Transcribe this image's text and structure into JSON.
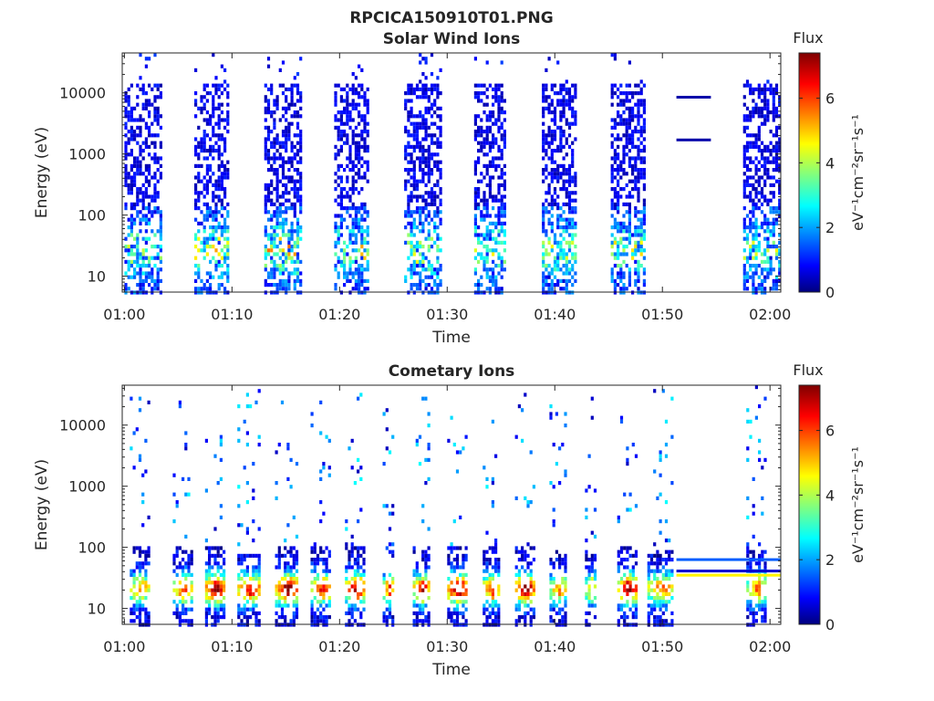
{
  "figure_title": "RPCICA150910T01.PNG",
  "chart_data": [
    {
      "type": "heatmap",
      "title": "Solar Wind Ions",
      "xlabel": "Time",
      "ylabel": "Energy (eV)",
      "x_ticks": [
        "01:00",
        "01:10",
        "01:20",
        "01:30",
        "01:40",
        "01:50",
        "02:00"
      ],
      "xlim_minutes": [
        -0.2,
        61.0
      ],
      "y_scale": "log",
      "y_ticks": [
        "10",
        "100",
        "1000",
        "10000"
      ],
      "ylim": [
        5.5,
        45000
      ],
      "colorbar": {
        "label": "Flux",
        "unit_label": "eV⁻¹cm⁻²sr⁻¹s⁻¹",
        "ticks": [
          "0",
          "2",
          "4",
          "6"
        ],
        "range": [
          0,
          7.4
        ]
      },
      "bursts": [
        {
          "start_min": 0.0,
          "end_min": 3.5,
          "peak_flux": 4.6,
          "emax": 15000
        },
        {
          "start_min": 6.5,
          "end_min": 9.8,
          "peak_flux": 5.4,
          "emax": 15000
        },
        {
          "start_min": 13.0,
          "end_min": 16.5,
          "peak_flux": 5.6,
          "emax": 15000
        },
        {
          "start_min": 19.5,
          "end_min": 22.7,
          "peak_flux": 4.8,
          "emax": 15000
        },
        {
          "start_min": 26.0,
          "end_min": 29.5,
          "peak_flux": 4.8,
          "emax": 15000
        },
        {
          "start_min": 32.5,
          "end_min": 35.5,
          "peak_flux": 4.3,
          "emax": 15000
        },
        {
          "start_min": 38.8,
          "end_min": 42.0,
          "peak_flux": 4.6,
          "emax": 15000
        },
        {
          "start_min": 45.2,
          "end_min": 48.5,
          "peak_flux": 5.0,
          "emax": 15000
        },
        {
          "start_min": 57.5,
          "end_min": 61.0,
          "peak_flux": 3.8,
          "emax": 15000
        }
      ],
      "lines": [
        {
          "start_min": 51.3,
          "end_min": 54.5,
          "energy": 8500,
          "flux": 0.3
        },
        {
          "start_min": 51.3,
          "end_min": 54.5,
          "energy": 1700,
          "flux": 0.3
        }
      ]
    },
    {
      "type": "heatmap",
      "title": "Cometary Ions",
      "xlabel": "Time",
      "ylabel": "Energy (eV)",
      "x_ticks": [
        "01:00",
        "01:10",
        "01:20",
        "01:30",
        "01:40",
        "01:50",
        "02:00"
      ],
      "xlim_minutes": [
        -0.2,
        61.0
      ],
      "y_scale": "log",
      "y_ticks": [
        "10",
        "100",
        "1000",
        "10000"
      ],
      "ylim": [
        5.5,
        45000
      ],
      "colorbar": {
        "label": "Flux",
        "unit_label": "eV⁻¹cm⁻²sr⁻¹s⁻¹",
        "ticks": [
          "0",
          "2",
          "4",
          "6"
        ],
        "range": [
          0,
          7.4
        ]
      },
      "bursts": [
        {
          "start_min": 0.5,
          "end_min": 2.5,
          "peak_flux": 5.2,
          "emax": 120
        },
        {
          "start_min": 4.5,
          "end_min": 6.5,
          "peak_flux": 5.6,
          "emax": 120
        },
        {
          "start_min": 7.5,
          "end_min": 9.5,
          "peak_flux": 7.0,
          "emax": 120
        },
        {
          "start_min": 10.5,
          "end_min": 12.8,
          "peak_flux": 6.2,
          "emax": 80
        },
        {
          "start_min": 14.0,
          "end_min": 16.2,
          "peak_flux": 6.8,
          "emax": 120
        },
        {
          "start_min": 17.3,
          "end_min": 19.3,
          "peak_flux": 6.0,
          "emax": 120
        },
        {
          "start_min": 20.5,
          "end_min": 22.5,
          "peak_flux": 6.6,
          "emax": 120
        },
        {
          "start_min": 24.0,
          "end_min": 25.0,
          "peak_flux": 5.8,
          "emax": 60
        },
        {
          "start_min": 26.8,
          "end_min": 28.5,
          "peak_flux": 6.2,
          "emax": 120
        },
        {
          "start_min": 30.0,
          "end_min": 31.8,
          "peak_flux": 6.9,
          "emax": 120
        },
        {
          "start_min": 33.3,
          "end_min": 35.0,
          "peak_flux": 6.0,
          "emax": 120
        },
        {
          "start_min": 36.3,
          "end_min": 38.3,
          "peak_flux": 6.8,
          "emax": 120
        },
        {
          "start_min": 39.5,
          "end_min": 41.0,
          "peak_flux": 5.0,
          "emax": 100
        },
        {
          "start_min": 42.8,
          "end_min": 44.0,
          "peak_flux": 4.8,
          "emax": 100
        },
        {
          "start_min": 45.8,
          "end_min": 47.8,
          "peak_flux": 6.9,
          "emax": 120
        },
        {
          "start_min": 48.6,
          "end_min": 51.0,
          "peak_flux": 5.2,
          "emax": 100
        },
        {
          "start_min": 57.8,
          "end_min": 59.8,
          "peak_flux": 5.2,
          "emax": 100
        }
      ],
      "lines": [
        {
          "start_min": 51.3,
          "end_min": 61.0,
          "energy": 63,
          "flux": 1.6
        },
        {
          "start_min": 51.3,
          "end_min": 61.0,
          "energy": 41,
          "flux": 0.6
        },
        {
          "start_min": 51.3,
          "end_min": 61.0,
          "energy": 35,
          "flux": 4.7
        }
      ]
    }
  ]
}
